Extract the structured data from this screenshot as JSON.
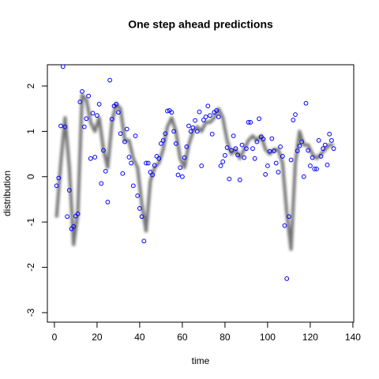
{
  "chart_data": {
    "type": "scatter",
    "title": "One step ahead predictions",
    "x_label": "time",
    "y_label": "distribution",
    "xlim": [
      -3.3,
      140.4
    ],
    "ylim": [
      -3.21,
      2.47
    ],
    "xticks": [
      0,
      20,
      40,
      60,
      80,
      100,
      120,
      140
    ],
    "yticks": [
      -3,
      -2,
      -1,
      0,
      1,
      2
    ],
    "series": [
      {
        "type": "points",
        "color": "#0000ff",
        "x": [
          1,
          2,
          3,
          4,
          5,
          6,
          7,
          8,
          9,
          10,
          11,
          12,
          13,
          14,
          15,
          16,
          17,
          18,
          19,
          20,
          21,
          22,
          23,
          24,
          25,
          26,
          27,
          28,
          29,
          30,
          31,
          32,
          33,
          34,
          35,
          36,
          37,
          38,
          39,
          40,
          41,
          42,
          43,
          44,
          45,
          46,
          47,
          48,
          49,
          50,
          51,
          52,
          53,
          54,
          55,
          56,
          57,
          58,
          59,
          60,
          61,
          62,
          63,
          64,
          65,
          66,
          67,
          68,
          69,
          70,
          71,
          72,
          73,
          74,
          75,
          76,
          77,
          78,
          79,
          80,
          81,
          82,
          83,
          84,
          85,
          86,
          87,
          88,
          89,
          90,
          91,
          92,
          93,
          94,
          95,
          96,
          97,
          98,
          99,
          100,
          101,
          102,
          103,
          104,
          105,
          106,
          107,
          108,
          109,
          110,
          111,
          112,
          113,
          114,
          115,
          116,
          117,
          118,
          119,
          120,
          121,
          122,
          123,
          124,
          125,
          126,
          127,
          128,
          129,
          130,
          131
        ],
        "values": [
          -0.2,
          -0.03,
          1.12,
          2.43,
          1.1,
          -0.88,
          -0.3,
          -1.15,
          -1.1,
          -0.87,
          -0.82,
          1.65,
          1.88,
          1.1,
          1.28,
          1.78,
          0.4,
          1.4,
          0.43,
          1.35,
          1.6,
          -0.15,
          0.58,
          0.12,
          -0.56,
          2.13,
          1.27,
          1.56,
          1.6,
          1.42,
          0.95,
          0.07,
          0.77,
          1.05,
          0.43,
          0.3,
          -0.2,
          0.9,
          -0.42,
          -0.7,
          -0.88,
          -1.42,
          0.3,
          0.3,
          0.1,
          0.04,
          0.25,
          0.45,
          0.4,
          0.73,
          0.8,
          0.95,
          1.45,
          1.46,
          1.42,
          1.0,
          0.73,
          0.04,
          0.2,
          0.0,
          0.42,
          0.66,
          1.12,
          1.0,
          1.08,
          1.24,
          1.0,
          1.43,
          0.24,
          1.25,
          1.32,
          1.56,
          1.35,
          0.94,
          1.42,
          1.46,
          1.32,
          0.24,
          0.33,
          0.47,
          0.64,
          -0.05,
          0.58,
          0.9,
          0.62,
          0.48,
          -0.07,
          0.7,
          0.42,
          0.62,
          1.2,
          1.2,
          0.62,
          0.4,
          0.77,
          1.28,
          0.88,
          0.83,
          0.05,
          0.24,
          0.56,
          0.84,
          0.57,
          0.3,
          0.1,
          0.66,
          0.45,
          -1.08,
          -2.25,
          -0.88,
          0.37,
          1.25,
          1.37,
          0.57,
          0.68,
          0.77,
          0.0,
          1.62,
          0.58,
          0.24,
          0.42,
          0.17,
          0.17,
          0.8,
          0.45,
          0.62,
          0.7,
          0.26,
          0.94,
          0.8,
          0.62
        ]
      },
      {
        "type": "line",
        "color": "#000000",
        "x": [
          1,
          3,
          5,
          7,
          9,
          11,
          13,
          15,
          17,
          19,
          21,
          23,
          25,
          27,
          29,
          31,
          33,
          35,
          37,
          39,
          41,
          43,
          45,
          47,
          49,
          51,
          53,
          55,
          57,
          59,
          61,
          63,
          65,
          67,
          69,
          71,
          73,
          75,
          77,
          79,
          81,
          83,
          85,
          87,
          89,
          91,
          93,
          95,
          97,
          99,
          101,
          103,
          105,
          107,
          109,
          111,
          113,
          115,
          117,
          119,
          121,
          123,
          125,
          127,
          129,
          131
        ],
        "values": [
          -0.9,
          0.3,
          1.3,
          0.2,
          -1.5,
          -0.8,
          1.8,
          1.7,
          1.2,
          1.0,
          1.3,
          0.6,
          0.2,
          1.2,
          1.6,
          1.5,
          0.8,
          0.8,
          0.4,
          0.2,
          -0.6,
          -1.2,
          -0.1,
          0.2,
          0.3,
          0.6,
          1.1,
          1.3,
          1.0,
          0.4,
          0.2,
          0.7,
          1.0,
          1.1,
          1.0,
          1.2,
          1.2,
          1.3,
          1.5,
          1.3,
          0.8,
          0.5,
          0.6,
          0.4,
          0.6,
          0.8,
          0.9,
          0.8,
          0.9,
          0.6,
          0.5,
          0.6,
          0.6,
          0.3,
          -0.8,
          -1.6,
          0.3,
          1.0,
          0.7,
          0.7,
          0.5,
          0.4,
          0.5,
          0.6,
          0.7,
          0.7
        ]
      }
    ]
  }
}
